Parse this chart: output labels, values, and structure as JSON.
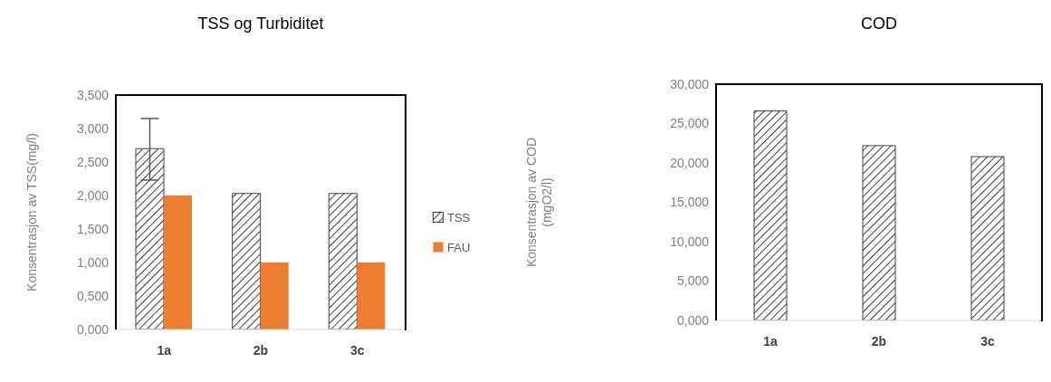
{
  "chart_data": [
    {
      "type": "bar",
      "title": "TSS og Turbiditet",
      "ylabel": "Konsentrasjon  av TSS(mg/l)",
      "categories": [
        "1a",
        "2b",
        "3c"
      ],
      "series": [
        {
          "name": "TSS",
          "color": "#404040",
          "values": [
            2.7,
            2.03,
            2.03
          ],
          "errors": [
            [
              2.23,
              3.15
            ],
            null,
            null
          ]
        },
        {
          "name": "FAU",
          "color": "#ed7d31",
          "values": [
            2.0,
            1.0,
            1.0
          ]
        }
      ],
      "ylim": [
        0,
        3.5
      ],
      "yticks": [
        {
          "value": 0,
          "label": "0,000"
        },
        {
          "value": 0.5,
          "label": "0,500"
        },
        {
          "value": 1,
          "label": "1,000"
        },
        {
          "value": 1.5,
          "label": "1,500"
        },
        {
          "value": 2,
          "label": "2,000"
        },
        {
          "value": 2.5,
          "label": "2,500"
        },
        {
          "value": 3,
          "label": "3,000"
        },
        {
          "value": 3.5,
          "label": "3,500"
        }
      ],
      "grid": false,
      "legend": "right"
    },
    {
      "type": "bar",
      "title": "COD",
      "ylabel": "Konsentrasjon  av COD\n(mgO2/l)",
      "categories": [
        "1a",
        "2b",
        "3c"
      ],
      "series": [
        {
          "color": "#404040",
          "values": [
            26.6,
            22.2,
            20.8
          ]
        }
      ],
      "ylim": [
        0,
        30
      ],
      "yticks": [
        {
          "value": 0,
          "label": "0,000"
        },
        {
          "value": 5,
          "label": "5,000"
        },
        {
          "value": 10,
          "label": "10,000"
        },
        {
          "value": 15,
          "label": "15,000"
        },
        {
          "value": 20,
          "label": "20,000"
        },
        {
          "value": 25,
          "label": "25,000"
        },
        {
          "value": 30,
          "label": "30,000"
        }
      ],
      "grid": false,
      "legend": false
    }
  ]
}
